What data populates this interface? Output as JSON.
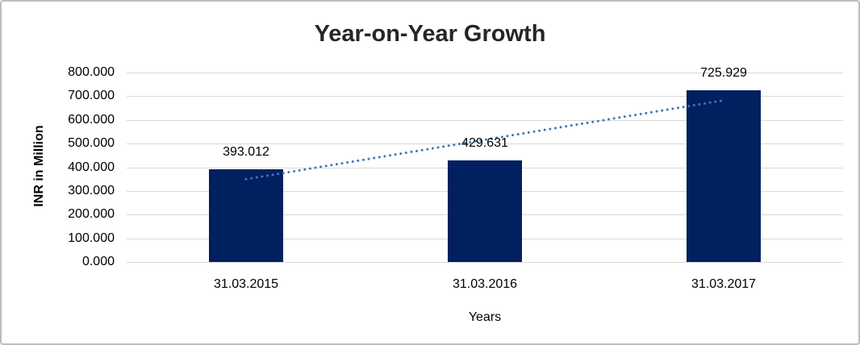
{
  "title": "Year-on-Year Growth",
  "chart_data": {
    "type": "bar",
    "title": "Year-on-Year Growth",
    "categories": [
      "31.03.2015",
      "31.03.2016",
      "31.03.2017"
    ],
    "values": [
      393.012,
      429.631,
      725.929
    ],
    "data_labels": [
      "393.012",
      "429.631",
      "725.929"
    ],
    "xlabel": "Years",
    "ylabel": "INR in Million",
    "ylim": [
      0,
      800
    ],
    "ytick_step": 100,
    "ytick_labels": [
      "0.000",
      "100.000",
      "200.000",
      "300.000",
      "400.000",
      "500.000",
      "600.000",
      "700.000",
      "800.000"
    ],
    "grid": true,
    "legend": false,
    "bar_color": "#002060",
    "trendline": {
      "type": "linear",
      "style": "dotted",
      "color": "#4472C4",
      "values_at_categories": [
        349.73,
        516.19,
        682.66
      ]
    },
    "colors": {
      "gridline": "#d9d9d9",
      "title_text": "#262626",
      "axis_text": "#000000",
      "frame_border": "#bdbdbd",
      "background": "#ffffff"
    }
  }
}
